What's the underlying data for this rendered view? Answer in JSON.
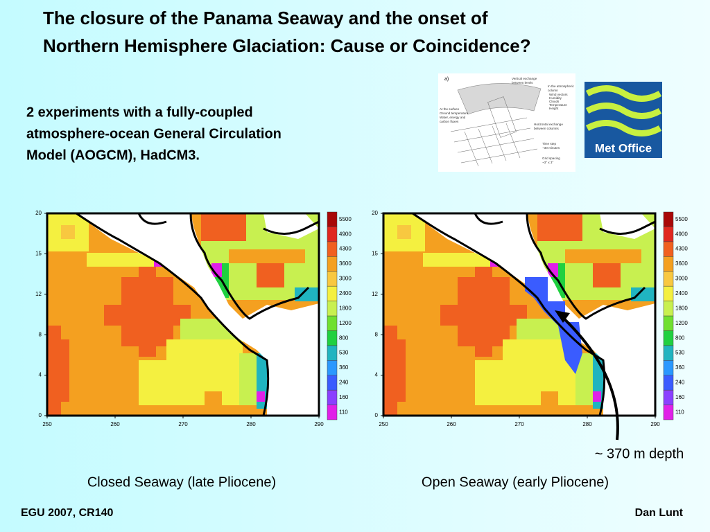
{
  "header": {
    "title_lines": [
      "The closure of the Panama Seaway and the onset of",
      "Northern Hemisphere Glaciation: Cause or Coincidence?"
    ]
  },
  "intro_lines": [
    "2 experiments with a fully-coupled",
    "atmosphere-ocean General Circulation",
    "Model (AOGCM), HadCM3."
  ],
  "schematic": {
    "panel_label": "a)",
    "labels": [
      "Vertical exchange",
      "between levels",
      "In the atmospheric",
      "column",
      "Wind vectors",
      "Humidity",
      "Clouds",
      "Temperature",
      "Height",
      "At the surface",
      "Ground temperature",
      "Water, energy and",
      "carbon fluxes",
      "Horizontal exchange",
      "between columns",
      "Time step",
      "~30 minutes",
      "Grid spacing",
      "~3° x 3°"
    ]
  },
  "logo": {
    "text": "Met Office"
  },
  "maps": [
    {
      "caption": "Closed Seaway (late Pliocene)",
      "seaway": "closed"
    },
    {
      "caption": "Open Seaway (early Pliocene)",
      "seaway": "open"
    }
  ],
  "axes": {
    "x_ticks": [
      250,
      260,
      270,
      280,
      290
    ],
    "y_ticks": [
      0,
      4,
      8,
      12,
      15,
      20
    ]
  },
  "colorbar": {
    "levels": [
      110,
      160,
      240,
      360,
      530,
      800,
      1200,
      1800,
      2400,
      3000,
      3600,
      4300,
      4900,
      5500
    ],
    "colors": [
      "#e020e8",
      "#8a40ff",
      "#3a5cff",
      "#2a98ff",
      "#20b4c0",
      "#20d040",
      "#70e030",
      "#c8f050",
      "#f4f040",
      "#f8c840",
      "#f4a020",
      "#f06020",
      "#e02820",
      "#a80808"
    ]
  },
  "annotation": "~ 370 m depth",
  "footer": {
    "left": "EGU 2007, CR140",
    "right": "Dan Lunt"
  }
}
